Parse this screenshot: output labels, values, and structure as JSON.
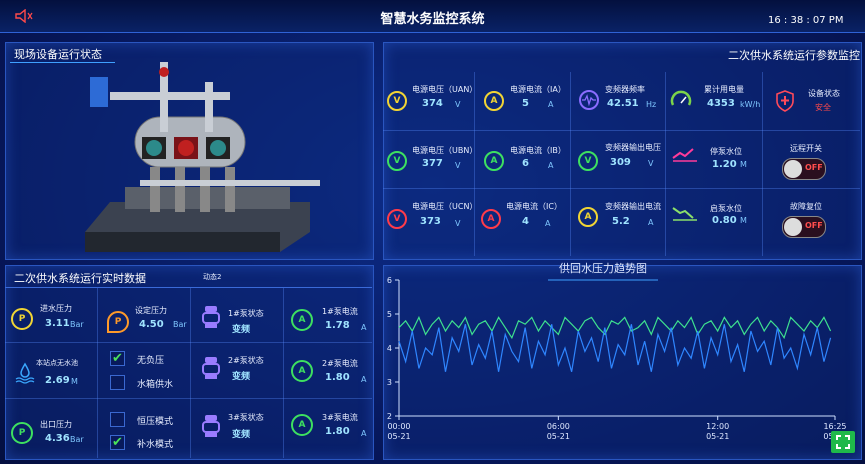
{
  "header": {
    "title": "智慧水务监控系统",
    "time": "16 : 38 : 07 PM"
  },
  "equipment_panel": {
    "title": "现场设备运行状态"
  },
  "params_panel": {
    "title": "二次供水系统运行参数监控",
    "cells": [
      {
        "icon": "V",
        "label": "电源电压（UAN）",
        "value": "374",
        "unit": "V"
      },
      {
        "icon": "A",
        "label": "电源电流（IA）",
        "value": "5",
        "unit": "A"
      },
      {
        "label": "变频器频率",
        "value": "42.51",
        "unit": "Hz"
      },
      {
        "label": "累计用电量",
        "value": "4353",
        "unit": "kW/h"
      },
      {
        "label": "设备状态",
        "value": "安全"
      },
      {
        "icon": "V",
        "label": "电源电压（UBN）",
        "value": "377",
        "unit": "V"
      },
      {
        "icon": "A",
        "label": "电源电流（IB）",
        "value": "6",
        "unit": "A"
      },
      {
        "icon": "V",
        "label": "变频器输出电压",
        "value": "309",
        "unit": "V"
      },
      {
        "label": "停泵水位",
        "value": "1.20",
        "unit": "M"
      },
      {
        "label": "远程开关",
        "value": "OFF"
      },
      {
        "icon": "V",
        "label": "电源电压（UCN）",
        "value": "373",
        "unit": "V"
      },
      {
        "icon": "A",
        "label": "电源电流（IC）",
        "value": "4",
        "unit": "A"
      },
      {
        "icon": "A",
        "label": "变频器输出电流",
        "value": "5.2",
        "unit": "A"
      },
      {
        "label": "启泵水位",
        "value": "0.80",
        "unit": "M"
      },
      {
        "label": "故障复位",
        "value": "OFF"
      }
    ]
  },
  "realtime_panel": {
    "title": "二次供水系统运行实时数据",
    "tag": "动态2",
    "inlet": {
      "icon": "P",
      "label": "进水压力",
      "value": "3.11",
      "unit": "Bar"
    },
    "pool": {
      "label": "本站点无水池",
      "value": "2.69",
      "unit": "M"
    },
    "outlet": {
      "icon": "P",
      "label": "出口压力",
      "value": "4.36",
      "unit": "Bar"
    },
    "setpoint": {
      "icon": "P",
      "label": "设定压力",
      "value": "4.50",
      "unit": "Bar"
    },
    "options": [
      {
        "label": "无负压",
        "checked": true
      },
      {
        "label": "水箱供水",
        "checked": false
      },
      {
        "label": "恒压模式",
        "checked": false
      },
      {
        "label": "补水模式",
        "checked": true
      }
    ],
    "pumps": [
      {
        "label": "1#泵状态",
        "value": "变频"
      },
      {
        "label": "2#泵状态",
        "value": "变频"
      },
      {
        "label": "3#泵状态",
        "value": "变频"
      }
    ],
    "currents": [
      {
        "icon": "A",
        "label": "1#泵电流",
        "value": "1.78",
        "unit": "A"
      },
      {
        "icon": "A",
        "label": "2#泵电流",
        "value": "1.80",
        "unit": "A"
      },
      {
        "icon": "A",
        "label": "3#泵电流",
        "value": "1.80",
        "unit": "A"
      }
    ]
  },
  "chart_data": {
    "type": "line",
    "title": "供回水压力趋势图",
    "x": [
      0,
      0.25,
      0.5,
      0.75,
      1,
      1.25,
      1.5,
      1.75,
      2,
      2.25,
      2.5,
      2.75,
      3,
      3.25,
      3.5,
      3.75,
      4,
      4.25,
      4.5,
      4.75,
      5,
      5.25,
      5.5,
      5.75,
      6,
      6.25,
      6.5,
      6.75,
      7,
      7.25,
      7.5,
      7.75,
      8,
      8.25,
      8.5,
      8.75,
      9,
      9.25,
      9.5,
      9.75,
      10,
      10.25,
      10.5,
      10.75,
      11,
      11.25,
      11.5,
      11.75,
      12,
      12.25,
      12.5,
      12.75,
      13,
      13.25,
      13.5,
      13.75,
      14,
      14.25,
      14.5,
      14.75,
      15,
      15.25,
      15.5,
      15.75,
      16,
      16.25
    ],
    "series": [
      {
        "color": "#3ee08f",
        "values": [
          4.6,
          4.8,
          4.5,
          4.9,
          4.4,
          4.7,
          4.9,
          4.5,
          4.8,
          4.6,
          4.9,
          4.4,
          4.7,
          4.8,
          4.5,
          4.9,
          4.6,
          4.3,
          4.8,
          4.7,
          4.9,
          4.5,
          4.8,
          4.6,
          4.4,
          4.9,
          4.7,
          4.5,
          4.8,
          4.9,
          4.6,
          4.4,
          4.8,
          4.7,
          4.9,
          4.5,
          4.6,
          4.8,
          4.4,
          4.9,
          4.7,
          4.5,
          4.8,
          4.6,
          4.9,
          4.4,
          4.7,
          4.8,
          4.5,
          4.9,
          4.6,
          4.8,
          4.4,
          4.7,
          4.9,
          4.5,
          4.8,
          4.6,
          4.3,
          4.9,
          4.7,
          4.5,
          4.8,
          4.6,
          4.9,
          4.5
        ]
      },
      {
        "color": "#2f86ff",
        "values": [
          4.2,
          3.6,
          4.5,
          3.4,
          4.0,
          3.8,
          4.6,
          3.3,
          4.3,
          3.9,
          4.7,
          3.5,
          4.1,
          3.7,
          4.5,
          3.3,
          4.4,
          3.9,
          3.6,
          4.6,
          3.4,
          4.2,
          3.8,
          4.7,
          3.5,
          4.0,
          3.3,
          4.5,
          3.9,
          4.3,
          3.6,
          4.6,
          3.4,
          4.1,
          3.8,
          4.7,
          3.5,
          4.2,
          3.3,
          4.4,
          3.9,
          4.6,
          3.5,
          4.0,
          3.7,
          4.5,
          3.4,
          4.3,
          3.8,
          4.7,
          3.6,
          4.1,
          3.3,
          4.5,
          3.9,
          4.2,
          3.5,
          4.6,
          3.7,
          4.0,
          3.4,
          4.4,
          3.8,
          4.6,
          3.6,
          4.3
        ]
      }
    ],
    "xlim": [
      0,
      16.4167
    ],
    "ylim": [
      2,
      6
    ],
    "yticks": [
      2,
      3,
      4,
      5,
      6
    ],
    "xticks": [
      {
        "value": 0,
        "label": "00:00 05-21"
      },
      {
        "value": 6,
        "label": "06:00 05-21"
      },
      {
        "value": 12,
        "label": "12:00 05-21"
      },
      {
        "value": 16.4167,
        "label": "16:25 05-21"
      }
    ]
  }
}
